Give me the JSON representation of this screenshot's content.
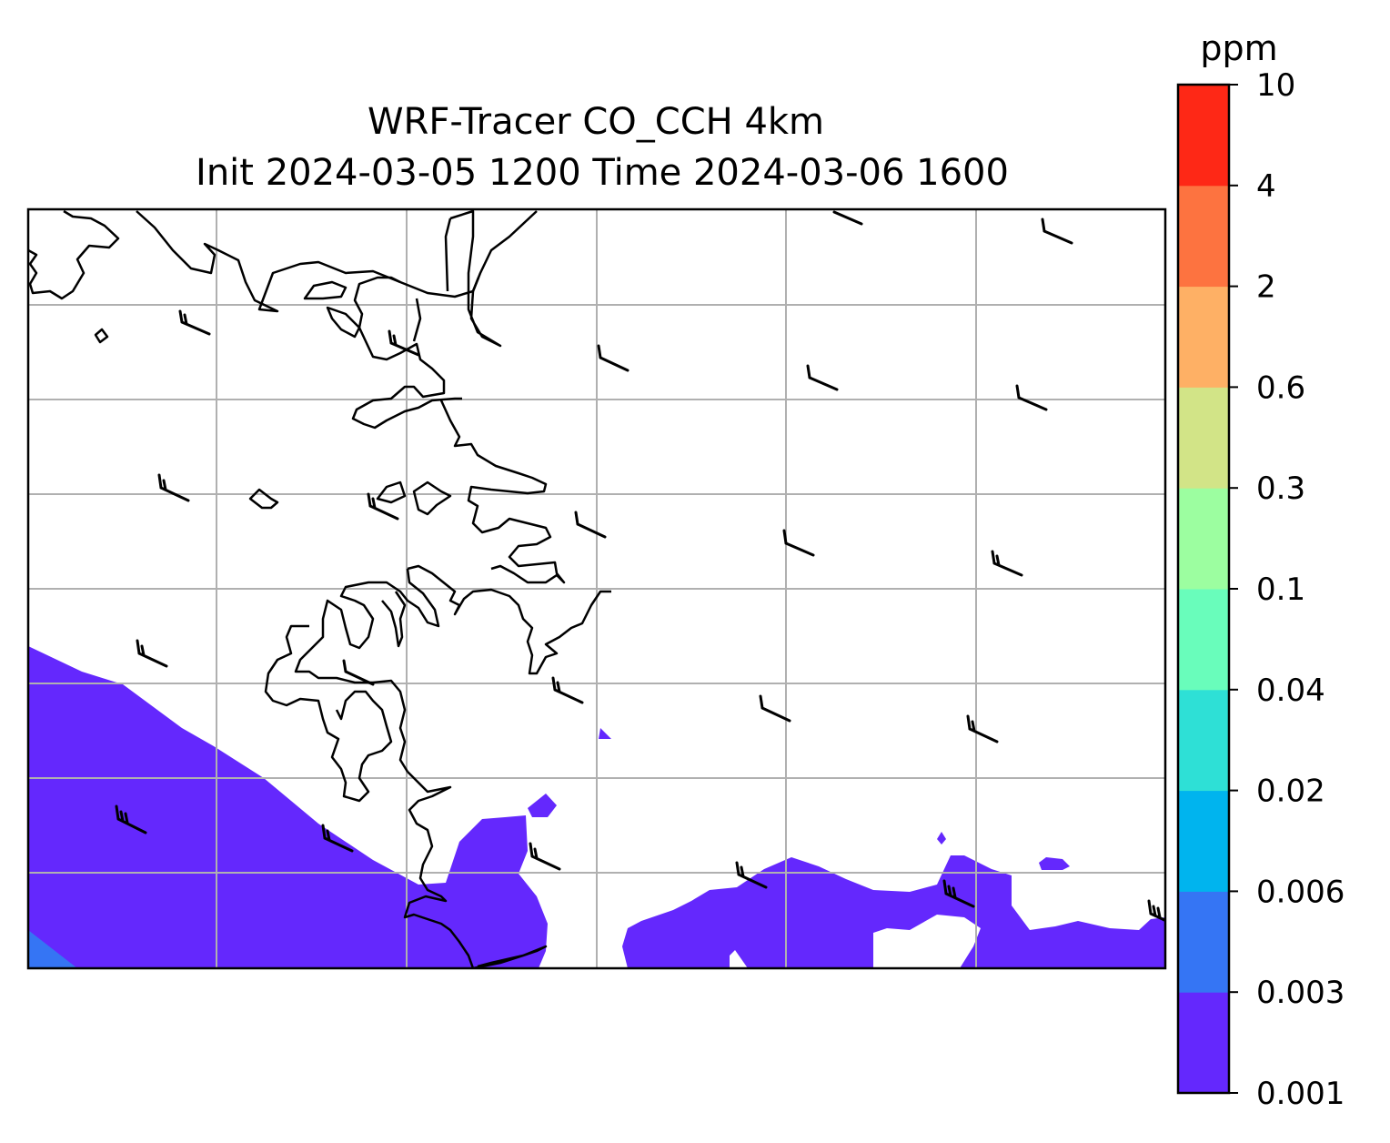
{
  "title_lines": [
    "WRF-Tracer CO_CCH 4km",
    "Init 2024-03-05 1200 Time 2024-03-06 1600"
  ],
  "colorbar": {
    "units": "ppm",
    "levels": [
      "0.001",
      "0.003",
      "0.006",
      "0.02",
      "0.04",
      "0.1",
      "0.3",
      "0.6",
      "2",
      "4",
      "10"
    ],
    "colors": [
      "#6428fd",
      "#3575f4",
      "#00b4ee",
      "#2ee0d6",
      "#69fdbb",
      "#9cfea0",
      "#d2e487",
      "#feb065",
      "#fd7340",
      "#fe2816"
    ]
  },
  "map": {
    "gridlines": true,
    "coastline_color": "#000000",
    "grid_color": "#b0b0b0"
  }
}
